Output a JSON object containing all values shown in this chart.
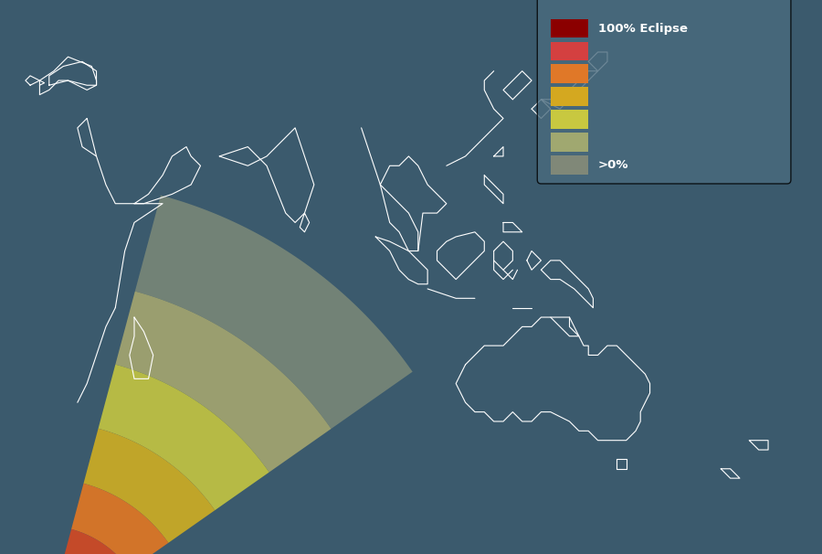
{
  "background_color": "#3b5a6d",
  "legend_bg_color": "#4a6b7e",
  "legend_colors": [
    "#8b0000",
    "#d44040",
    "#e07828",
    "#d4a820",
    "#c8c840",
    "#a0a870",
    "#808878"
  ],
  "legend_labels": [
    "100% Eclipse",
    "",
    "",
    "",
    "",
    "",
    ">0%"
  ],
  "band_colors": [
    "#8b0000",
    "#c03030",
    "#d84820",
    "#e87820",
    "#d4b020",
    "#c8c840",
    "#a8a870",
    "#7a8878"
  ],
  "band_radii": [
    8,
    14,
    22,
    32,
    44,
    58,
    74,
    95
  ],
  "focal_lon": 25.0,
  "focal_lat": -78.0,
  "coastline_color": "#ffffff",
  "path_color": "#0f0a18",
  "fig_width": 9.0,
  "fig_height": 6.06,
  "xlim": [
    20,
    185
  ],
  "ylim": [
    -62,
    55
  ]
}
